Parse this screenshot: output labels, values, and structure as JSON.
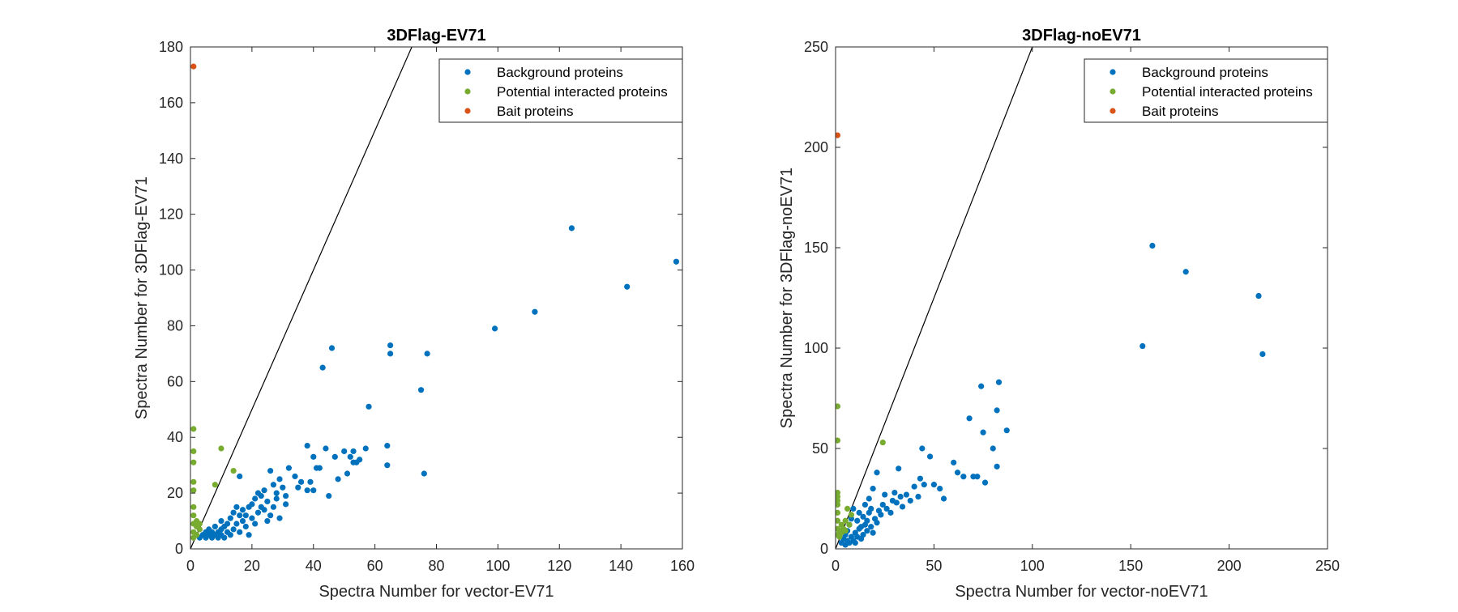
{
  "colors": {
    "background": "#0072BD",
    "potential": "#77AC30",
    "bait": "#D95319",
    "axis": "#262626",
    "diagonal": "#000000"
  },
  "chart_data": [
    {
      "type": "scatter",
      "title": "3DFlag-EV71",
      "xlabel": "Spectra Number for vector-EV71",
      "ylabel": "Spectra Number for 3DFlag-EV71",
      "xlim": [
        0,
        160
      ],
      "ylim": [
        0,
        180
      ],
      "xticks": [
        "0",
        "20",
        "40",
        "60",
        "80",
        "100",
        "120",
        "140",
        "160"
      ],
      "yticks": [
        "0",
        "20",
        "40",
        "60",
        "80",
        "100",
        "120",
        "140",
        "160",
        "180"
      ],
      "grid": false,
      "box": true,
      "legend_position": "top-right",
      "diagonal_line": "y = 2.5x",
      "series": [
        {
          "name": "Background proteins",
          "color": "#0072BD",
          "points": [
            [
              3,
              4
            ],
            [
              4,
              5
            ],
            [
              5,
              4
            ],
            [
              5,
              6
            ],
            [
              6,
              5
            ],
            [
              6,
              7
            ],
            [
              7,
              4
            ],
            [
              7,
              6
            ],
            [
              8,
              5
            ],
            [
              8,
              8
            ],
            [
              9,
              4
            ],
            [
              9,
              6
            ],
            [
              10,
              7
            ],
            [
              10,
              5
            ],
            [
              10,
              10
            ],
            [
              11,
              4
            ],
            [
              11,
              8
            ],
            [
              12,
              6
            ],
            [
              12,
              9
            ],
            [
              13,
              5
            ],
            [
              13,
              11
            ],
            [
              14,
              7
            ],
            [
              14,
              13
            ],
            [
              15,
              9
            ],
            [
              15,
              15
            ],
            [
              16,
              6
            ],
            [
              16,
              12
            ],
            [
              16,
              26
            ],
            [
              17,
              10
            ],
            [
              17,
              14
            ],
            [
              18,
              8
            ],
            [
              18,
              12
            ],
            [
              19,
              5
            ],
            [
              19,
              15
            ],
            [
              20,
              11
            ],
            [
              20,
              16
            ],
            [
              21,
              18
            ],
            [
              21,
              9
            ],
            [
              22,
              13
            ],
            [
              22,
              20
            ],
            [
              23,
              19
            ],
            [
              23,
              15
            ],
            [
              24,
              14
            ],
            [
              24,
              21
            ],
            [
              25,
              10
            ],
            [
              25,
              17
            ],
            [
              26,
              12
            ],
            [
              26,
              28
            ],
            [
              27,
              23
            ],
            [
              27,
              15
            ],
            [
              28,
              20
            ],
            [
              28,
              18
            ],
            [
              29,
              25
            ],
            [
              29,
              11
            ],
            [
              30,
              22
            ],
            [
              31,
              19
            ],
            [
              31,
              16
            ],
            [
              32,
              29
            ],
            [
              34,
              26
            ],
            [
              35,
              22
            ],
            [
              36,
              24
            ],
            [
              38,
              37
            ],
            [
              38,
              21
            ],
            [
              39,
              24
            ],
            [
              40,
              21
            ],
            [
              40,
              33
            ],
            [
              41,
              29
            ],
            [
              42,
              29
            ],
            [
              43,
              65
            ],
            [
              44,
              36
            ],
            [
              45,
              19
            ],
            [
              46,
              72
            ],
            [
              47,
              33
            ],
            [
              48,
              25
            ],
            [
              50,
              35
            ],
            [
              51,
              27
            ],
            [
              52,
              33
            ],
            [
              53,
              31
            ],
            [
              53,
              35
            ],
            [
              54,
              31
            ],
            [
              55,
              32
            ],
            [
              57,
              36
            ],
            [
              58,
              51
            ],
            [
              64,
              30
            ],
            [
              64,
              37
            ],
            [
              65,
              70
            ],
            [
              65,
              73
            ],
            [
              75,
              57
            ],
            [
              76,
              27
            ],
            [
              77,
              70
            ],
            [
              99,
              79
            ],
            [
              112,
              85
            ],
            [
              124,
              115
            ],
            [
              142,
              94
            ],
            [
              158,
              103
            ]
          ]
        },
        {
          "name": "Potential interacted proteins",
          "color": "#77AC30",
          "points": [
            [
              1,
              43
            ],
            [
              1,
              35
            ],
            [
              1,
              31
            ],
            [
              1,
              24
            ],
            [
              1,
              21
            ],
            [
              1,
              15
            ],
            [
              1,
              12
            ],
            [
              1,
              9
            ],
            [
              1,
              6
            ],
            [
              1,
              4
            ],
            [
              2,
              10
            ],
            [
              2,
              8
            ],
            [
              2,
              5
            ],
            [
              3,
              9
            ],
            [
              3,
              7
            ],
            [
              8,
              23
            ],
            [
              10,
              36
            ],
            [
              14,
              28
            ]
          ]
        },
        {
          "name": "Bait proteins",
          "color": "#D95319",
          "points": [
            [
              1,
              173
            ]
          ]
        }
      ]
    },
    {
      "type": "scatter",
      "title": "3DFlag-noEV71",
      "xlabel": "Spectra Number for vector-noEV71",
      "ylabel": "Spectra Number for 3DFlag-noEV71",
      "xlim": [
        0,
        250
      ],
      "ylim": [
        0,
        250
      ],
      "xticks": [
        "0",
        "50",
        "100",
        "150",
        "200",
        "250"
      ],
      "yticks": [
        "0",
        "50",
        "100",
        "150",
        "200",
        "250"
      ],
      "grid": false,
      "box": true,
      "legend_position": "top-right",
      "diagonal_line": "y = 2.5x",
      "series": [
        {
          "name": "Background proteins",
          "color": "#0072BD",
          "points": [
            [
              3,
              3
            ],
            [
              4,
              5
            ],
            [
              5,
              2
            ],
            [
              5,
              7
            ],
            [
              6,
              4
            ],
            [
              6,
              9
            ],
            [
              7,
              3
            ],
            [
              7,
              12
            ],
            [
              8,
              6
            ],
            [
              8,
              15
            ],
            [
              9,
              4
            ],
            [
              9,
              20
            ],
            [
              10,
              8
            ],
            [
              10,
              3
            ],
            [
              11,
              6
            ],
            [
              11,
              14
            ],
            [
              12,
              10
            ],
            [
              12,
              18
            ],
            [
              13,
              5
            ],
            [
              13,
              11
            ],
            [
              14,
              7
            ],
            [
              14,
              16
            ],
            [
              15,
              12
            ],
            [
              15,
              22
            ],
            [
              16,
              9
            ],
            [
              16,
              14
            ],
            [
              17,
              18
            ],
            [
              17,
              25
            ],
            [
              18,
              11
            ],
            [
              18,
              20
            ],
            [
              19,
              30
            ],
            [
              19,
              8
            ],
            [
              20,
              15
            ],
            [
              21,
              13
            ],
            [
              21,
              38
            ],
            [
              22,
              19
            ],
            [
              23,
              17
            ],
            [
              24,
              22
            ],
            [
              25,
              27
            ],
            [
              26,
              20
            ],
            [
              28,
              18
            ],
            [
              29,
              24
            ],
            [
              30,
              28
            ],
            [
              31,
              23
            ],
            [
              32,
              40
            ],
            [
              33,
              26
            ],
            [
              34,
              21
            ],
            [
              36,
              27
            ],
            [
              38,
              24
            ],
            [
              40,
              31
            ],
            [
              42,
              26
            ],
            [
              43,
              35
            ],
            [
              44,
              50
            ],
            [
              45,
              32
            ],
            [
              48,
              46
            ],
            [
              50,
              32
            ],
            [
              53,
              30
            ],
            [
              55,
              25
            ],
            [
              60,
              43
            ],
            [
              62,
              38
            ],
            [
              65,
              36
            ],
            [
              68,
              65
            ],
            [
              70,
              36
            ],
            [
              72,
              36
            ],
            [
              74,
              81
            ],
            [
              75,
              58
            ],
            [
              76,
              33
            ],
            [
              80,
              50
            ],
            [
              82,
              41
            ],
            [
              82,
              69
            ],
            [
              83,
              83
            ],
            [
              87,
              59
            ],
            [
              156,
              101
            ],
            [
              161,
              151
            ],
            [
              178,
              138
            ],
            [
              215,
              126
            ],
            [
              217,
              97
            ]
          ]
        },
        {
          "name": "Potential interacted proteins",
          "color": "#77AC30",
          "points": [
            [
              1,
              71
            ],
            [
              1,
              54
            ],
            [
              1,
              28
            ],
            [
              1,
              26
            ],
            [
              1,
              24
            ],
            [
              1,
              22
            ],
            [
              1,
              18
            ],
            [
              1,
              14
            ],
            [
              1,
              10
            ],
            [
              1,
              7
            ],
            [
              2,
              9
            ],
            [
              2,
              6
            ],
            [
              3,
              12
            ],
            [
              3,
              8
            ],
            [
              4,
              10
            ],
            [
              5,
              14
            ],
            [
              5,
              9
            ],
            [
              6,
              20
            ],
            [
              7,
              12
            ],
            [
              8,
              17
            ],
            [
              24,
              53
            ]
          ]
        },
        {
          "name": "Bait proteins",
          "color": "#D95319",
          "points": [
            [
              1,
              206
            ]
          ]
        }
      ]
    }
  ]
}
